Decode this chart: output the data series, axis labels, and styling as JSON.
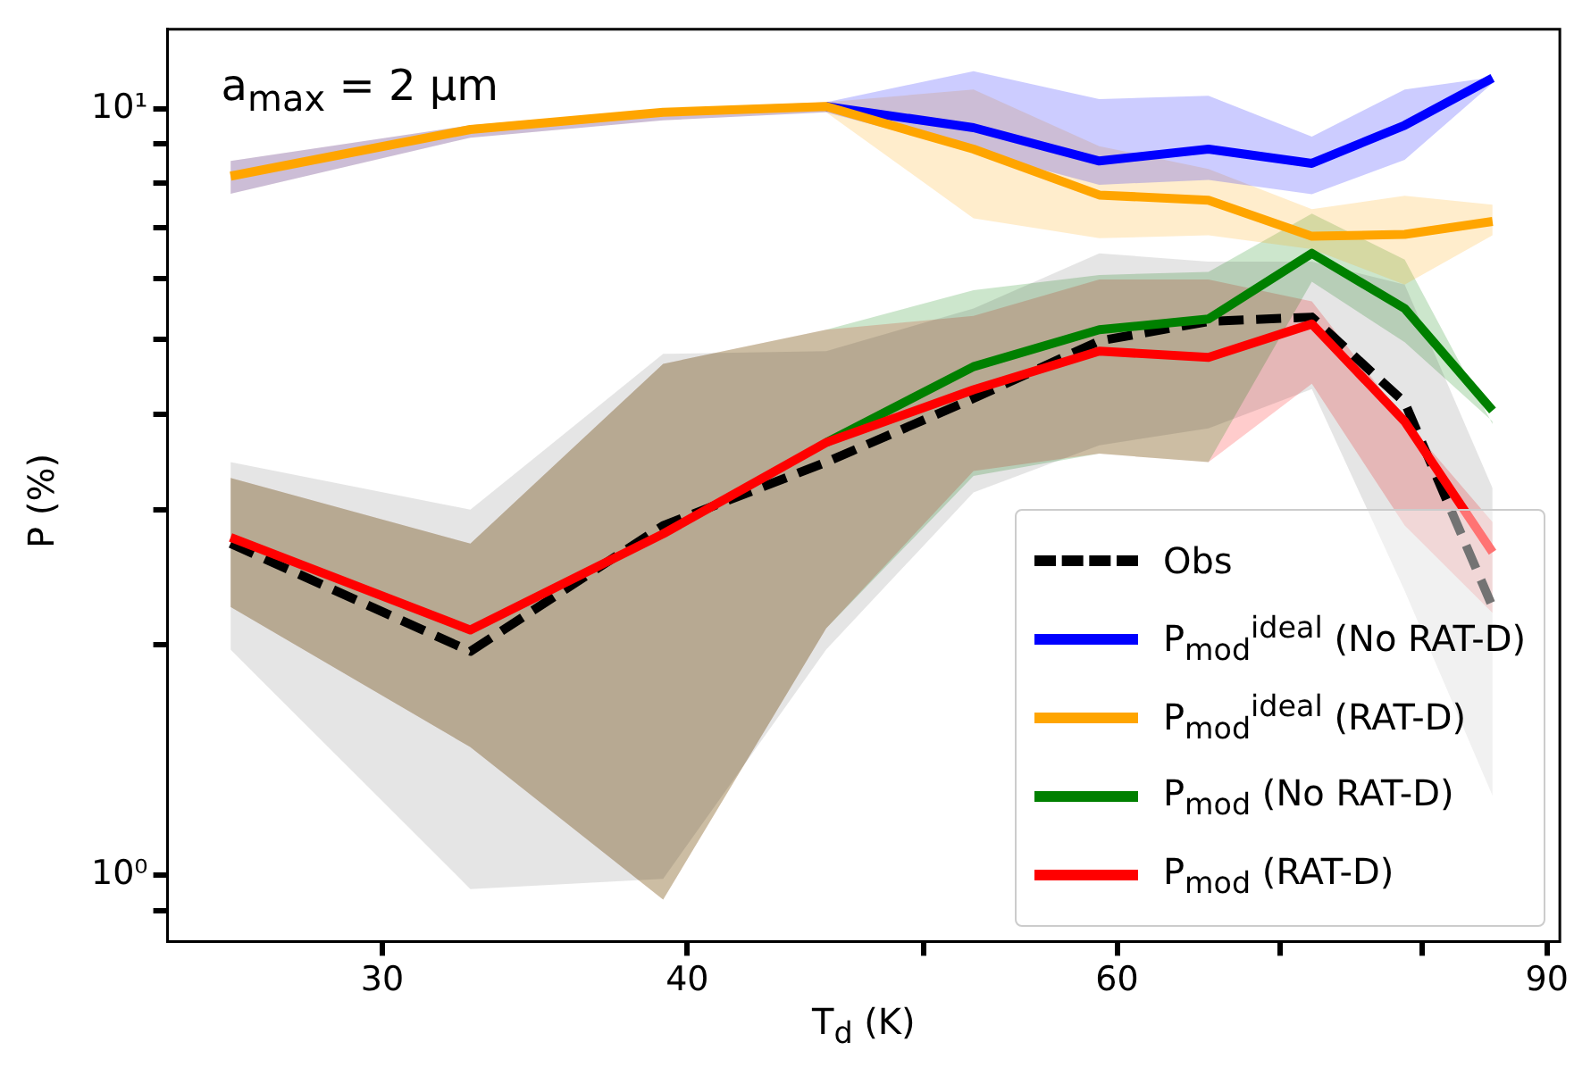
{
  "chart_data": {
    "type": "line",
    "xlabel": "T$_{d}$ (K)",
    "ylabel": "P (%)",
    "annotations": [
      "a$_{max}$ = 2 μm"
    ],
    "x": [
      26.0,
      32.6,
      39.1,
      45.6,
      52.4,
      59.0,
      65.4,
      72.1,
      78.7,
      85.5
    ],
    "series": [
      {
        "name": "Obs",
        "color": "#000000",
        "line_style": "dashed",
        "values": [
          2.71,
          1.96,
          2.86,
          3.46,
          4.19,
          4.98,
          5.28,
          5.35,
          4.14,
          2.24
        ],
        "lower": [
          1.97,
          0.96,
          0.99,
          1.97,
          3.16,
          3.64,
          3.83,
          4.31,
          2.35,
          1.27
        ],
        "upper": [
          3.46,
          3.0,
          4.79,
          4.83,
          5.49,
          6.48,
          6.32,
          6.32,
          5.9,
          3.2
        ]
      },
      {
        "name": "P$_{mod}$$^{ideal}$ (No RAT-D)",
        "color": "#0000ff",
        "line_style": "solid",
        "values": [
          null,
          null,
          null,
          10.07,
          9.45,
          8.55,
          8.86,
          8.49,
          9.52,
          10.97
        ],
        "lower": [
          7.75,
          9.17,
          9.66,
          9.9,
          8.8,
          7.96,
          8.08,
          7.74,
          8.58,
          10.8
        ],
        "upper": [
          8.55,
          9.52,
          10.0,
          10.2,
          11.2,
          10.3,
          10.4,
          9.2,
          10.6,
          11.0
        ]
      },
      {
        "name": "P$_{mod}$$^{ideal}$ (RAT-D)",
        "color": "#ffa500",
        "line_style": "solid",
        "values": [
          8.17,
          9.4,
          9.9,
          10.07,
          8.86,
          7.72,
          7.6,
          6.82,
          6.86,
          7.13
        ],
        "lower": [
          7.75,
          9.17,
          9.66,
          9.9,
          7.2,
          6.78,
          6.84,
          6.56,
          5.9,
          6.84
        ],
        "upper": [
          8.55,
          9.52,
          10.0,
          10.2,
          10.6,
          8.94,
          8.35,
          7.4,
          7.7,
          7.5
        ]
      },
      {
        "name": "P$_{mod}$ (No RAT-D)",
        "color": "#008000",
        "line_style": "solid",
        "values": [
          null,
          null,
          null,
          3.67,
          4.61,
          5.15,
          5.32,
          6.48,
          5.49,
          4.04
        ],
        "lower": [
          2.24,
          1.47,
          0.93,
          2.1,
          3.32,
          3.55,
          3.46,
          5.95,
          4.96,
          3.91
        ],
        "upper": [
          3.3,
          2.71,
          4.65,
          5.15,
          5.8,
          6.07,
          6.13,
          7.3,
          6.36,
          3.88
        ]
      },
      {
        "name": "P$_{mod}$ (RAT-D)",
        "color": "#ff0000",
        "line_style": "solid",
        "values": [
          2.76,
          2.09,
          2.79,
          3.67,
          4.3,
          4.83,
          4.74,
          5.24,
          3.91,
          2.64
        ],
        "lower": [
          2.24,
          1.47,
          0.93,
          2.1,
          3.37,
          3.55,
          3.46,
          4.38,
          2.86,
          2.2
        ],
        "upper": [
          3.3,
          2.71,
          4.65,
          5.15,
          5.37,
          5.99,
          5.99,
          5.61,
          3.93,
          2.89
        ]
      }
    ],
    "log": "xy",
    "xlim": [
      24.5,
      91.1
    ],
    "ylim": [
      0.82,
      12.7
    ],
    "xticks": [
      30,
      40,
      {
        "value": 50,
        "label": null
      },
      60,
      {
        "value": 70,
        "label": null
      },
      {
        "value": 80,
        "label": null
      },
      90
    ],
    "yticks": [
      {
        "value": 0.9,
        "label": null
      },
      {
        "value": 1,
        "label": "10⁰"
      },
      {
        "value": 2,
        "label": null
      },
      {
        "value": 3,
        "label": null
      },
      {
        "value": 4,
        "label": null
      },
      {
        "value": 5,
        "label": null
      },
      {
        "value": 6,
        "label": null
      },
      {
        "value": 7,
        "label": null
      },
      {
        "value": 8,
        "label": null
      },
      {
        "value": 9,
        "label": null
      },
      {
        "value": 10,
        "label": "10¹"
      }
    ],
    "grid": false,
    "legend": "bottom right",
    "marker": "none"
  }
}
